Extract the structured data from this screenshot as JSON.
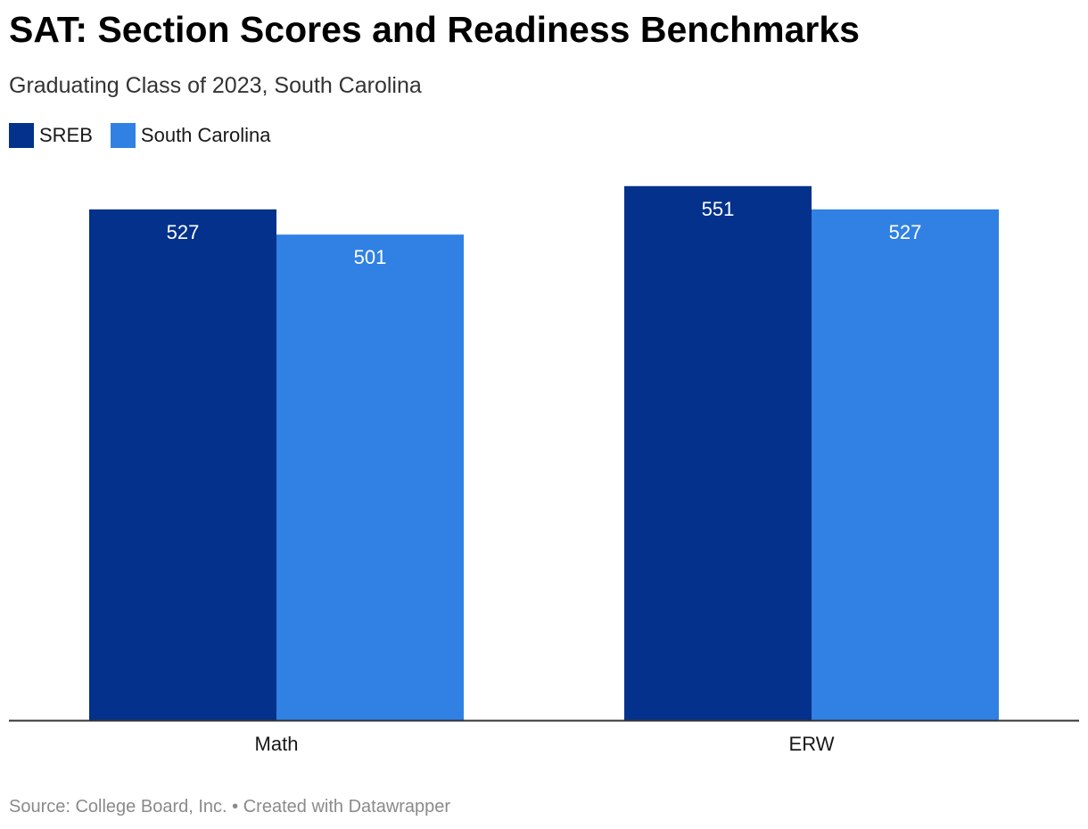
{
  "title": "SAT: Section Scores and Readiness Benchmarks",
  "subtitle": "Graduating Class of 2023, South Carolina",
  "footer": {
    "source": "Source: College Board, Inc.",
    "separator": "•",
    "credit": "Created with Datawrapper"
  },
  "colors": {
    "sreb": "#03318c",
    "south_carolina": "#3081e3",
    "axis": "#333333"
  },
  "chart_data": {
    "type": "bar",
    "title": "SAT: Section Scores and Readiness Benchmarks",
    "subtitle": "Graduating Class of 2023, South Carolina",
    "categories": [
      "Math",
      "ERW"
    ],
    "series": [
      {
        "name": "SREB",
        "values": [
          527,
          551
        ],
        "color": "#03318c"
      },
      {
        "name": "South Carolina",
        "values": [
          501,
          527
        ],
        "color": "#3081e3"
      }
    ],
    "ylim": [
      0,
      600
    ],
    "grid": false,
    "legend": "top-left",
    "data_labels": true,
    "xlabel": "",
    "ylabel": ""
  }
}
